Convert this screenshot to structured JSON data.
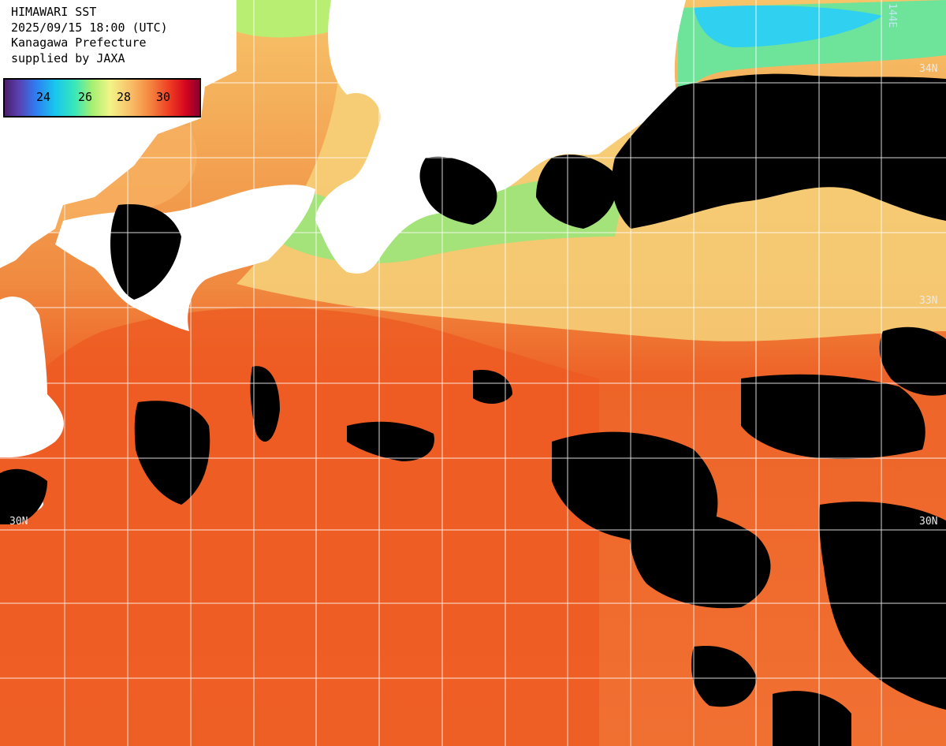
{
  "header": {
    "title": "HIMAWARI SST",
    "datetime": "2025/09/15 18:00 (UTC)",
    "region": "Kanagawa Prefecture",
    "credit": "supplied by JAXA"
  },
  "legend": {
    "ticks": [
      "24",
      "26",
      "28",
      "30"
    ],
    "colors": [
      "#4b1f6b",
      "#2f7df0",
      "#18c7ee",
      "#a6f072",
      "#f2f488",
      "#f58a42",
      "#ee3a22",
      "#d4061e"
    ]
  },
  "grid": {
    "lat_labels": [
      "34N",
      "33N",
      "30N",
      "30N"
    ],
    "lon_labels": [
      "144E"
    ]
  },
  "colors": {
    "land": "#ffffff",
    "cloud": "#000000",
    "warm_sea": "#ef6a2a",
    "cool_sea": "#f2f488",
    "coastal_cold": "#6ee39a",
    "grid_line": "#ffffff"
  }
}
